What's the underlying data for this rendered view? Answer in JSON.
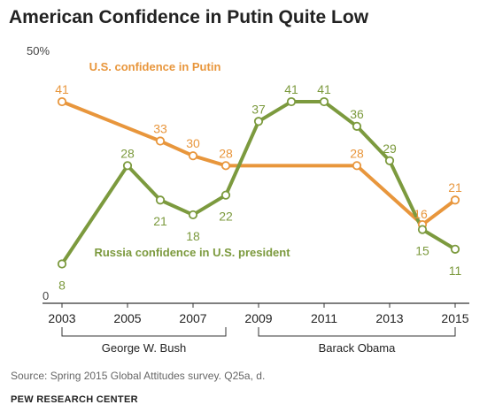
{
  "title": "American Confidence in Putin Quite Low",
  "source": "Source: Spring 2015 Global Attitudes survey. Q25a, d.",
  "credit": "PEW RESEARCH CENTER",
  "colors": {
    "us": "#E8963C",
    "russia": "#7C9A3E",
    "axis": "#333333",
    "text": "#333333"
  },
  "chart_data": {
    "type": "line",
    "ylim": [
      0,
      50
    ],
    "y_ticks": [
      "0",
      "50%"
    ],
    "x_ticks": [
      "2003",
      "2005",
      "2007",
      "2009",
      "2011",
      "2013",
      "2015"
    ],
    "xlim": [
      2003,
      2015
    ],
    "grid": false,
    "series": [
      {
        "name": "U.S. confidence in Putin",
        "color_key": "us",
        "x": [
          2003,
          2006,
          2007,
          2008,
          2012,
          2014,
          2015
        ],
        "values": [
          41,
          33,
          30,
          28,
          28,
          16,
          21
        ],
        "labels": [
          "41",
          "33",
          "30",
          "28",
          "28",
          "16",
          "21"
        ]
      },
      {
        "name": "Russia confidence in U.S. president",
        "color_key": "russia",
        "x": [
          2003,
          2005,
          2006,
          2007,
          2008,
          2009,
          2010,
          2011,
          2012,
          2013,
          2014,
          2015
        ],
        "values": [
          8,
          28,
          21,
          18,
          22,
          37,
          41,
          41,
          36,
          29,
          15,
          11
        ],
        "labels": [
          "8",
          "28",
          "21",
          "18",
          "22",
          "37",
          "41",
          "41",
          "36",
          "29",
          "15",
          "11"
        ]
      }
    ],
    "presidencies": [
      {
        "label": "George W. Bush",
        "start": 2003,
        "end": 2008
      },
      {
        "label": "Barack Obama",
        "start": 2009,
        "end": 2015
      }
    ]
  }
}
